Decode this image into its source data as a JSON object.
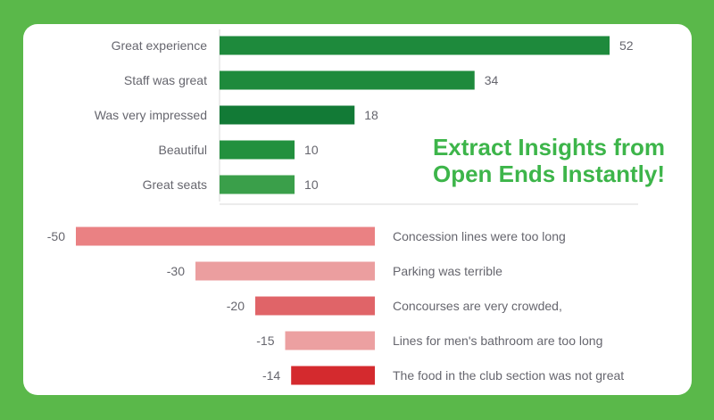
{
  "headline": {
    "line1": "Extract Insights from",
    "line2": "Open Ends Instantly!",
    "color": "#3db54a"
  },
  "colors": {
    "background": "#5ab84a",
    "card": "#ffffff"
  },
  "chart_data": [
    {
      "type": "bar",
      "orientation": "horizontal",
      "categories": [
        "Great experience",
        "Staff was great",
        "Was very impressed",
        "Beautiful",
        "Great seats"
      ],
      "values": [
        52,
        34,
        18,
        10,
        10
      ],
      "colors": [
        "#1e8a3c",
        "#1e8a3c",
        "#127a36",
        "#22903e",
        "#3a9f4a"
      ],
      "xlim": [
        0,
        52
      ],
      "grid": false
    },
    {
      "type": "bar",
      "orientation": "horizontal",
      "categories": [
        "Concession lines were too long",
        "Parking was terrible",
        "Concourses are very crowded,",
        "Lines for men's bathroom are too long",
        "The food in the club section was not great"
      ],
      "values": [
        -50,
        -30,
        -20,
        -15,
        -14
      ],
      "colors": [
        "#ea8183",
        "#eb9e9f",
        "#e06468",
        "#eca0a1",
        "#d42a2e"
      ],
      "xlim": [
        -50,
        0
      ],
      "grid": false
    }
  ]
}
